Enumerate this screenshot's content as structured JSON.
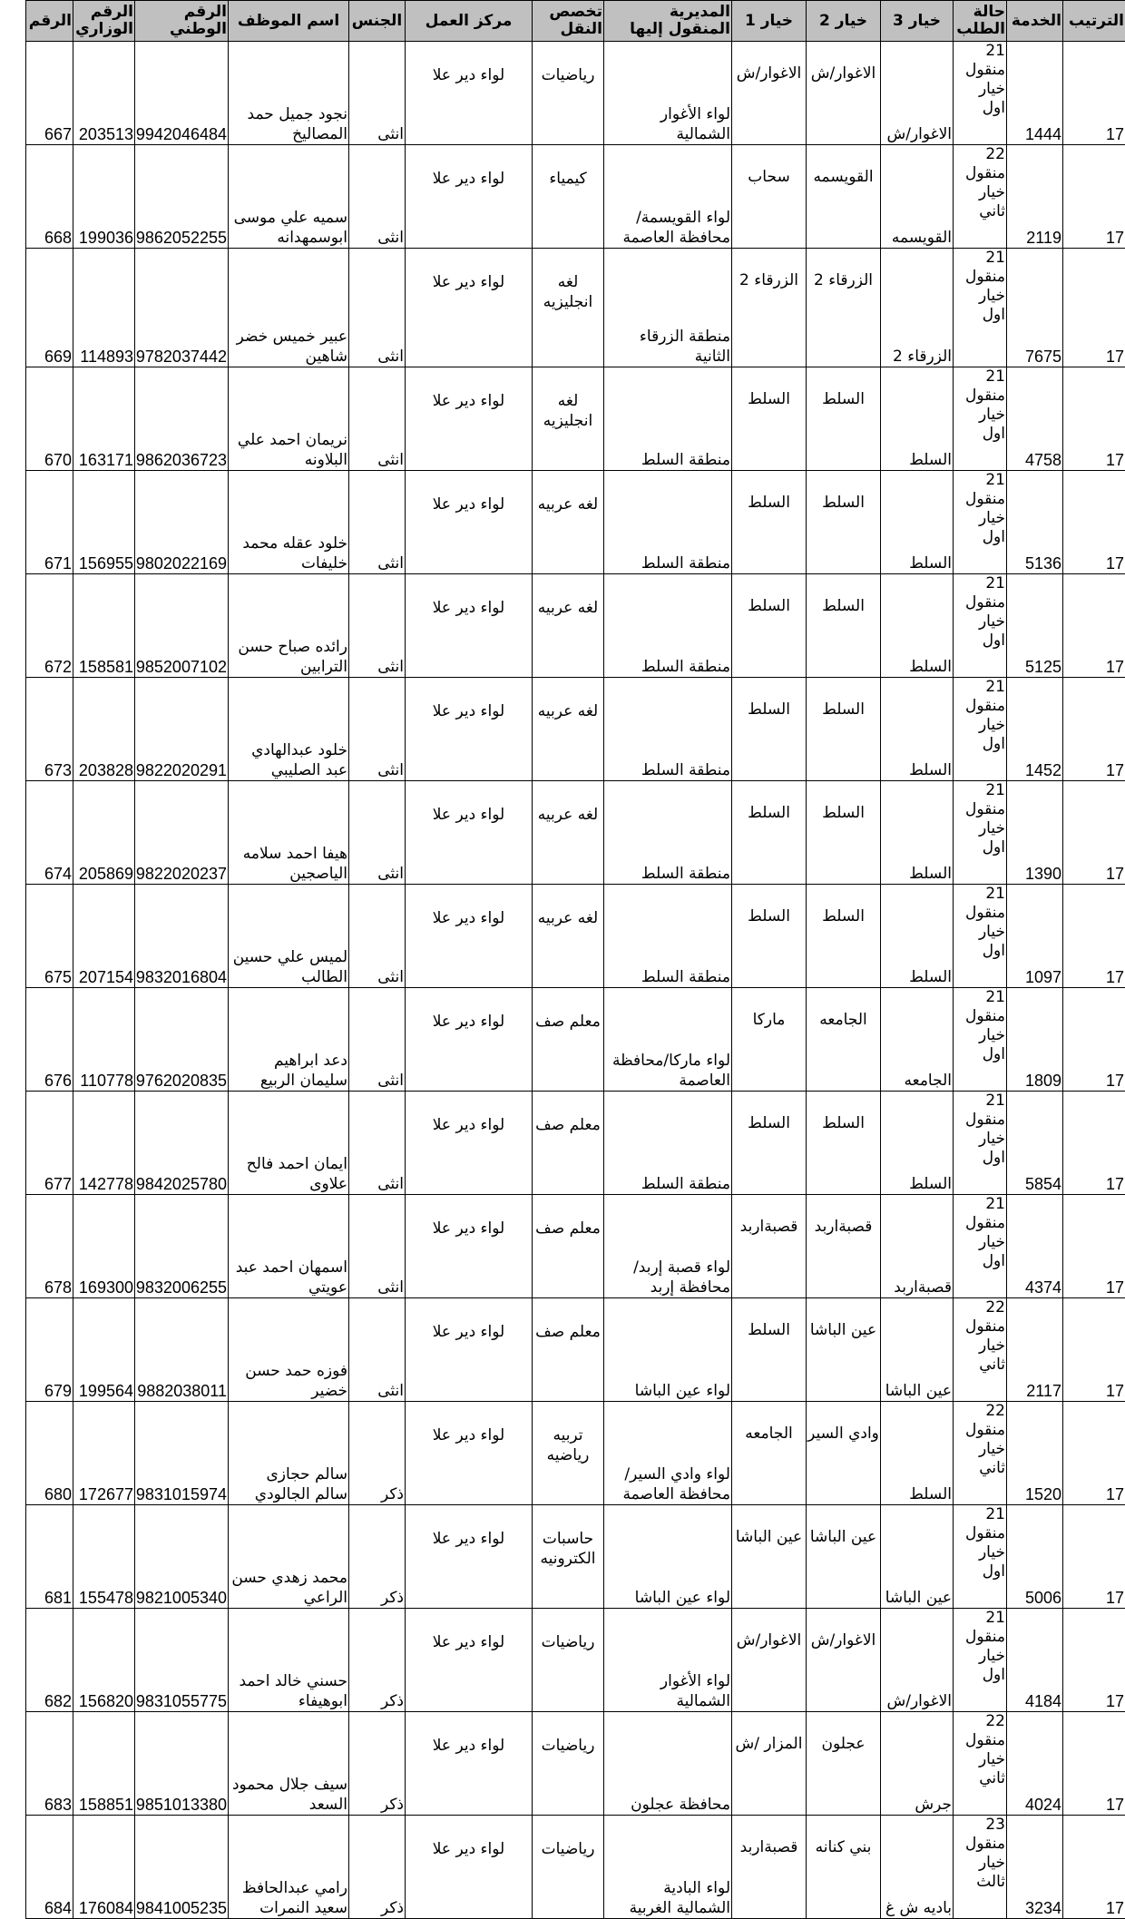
{
  "headers": [
    "الترتيب",
    "الخدمة",
    "حالة الطلب",
    "خيار 3",
    "خيار 2",
    "خيار 1",
    "المديرية المنقول إليها",
    "تخصص النقل",
    "مركز العمل",
    "الجنس",
    "اسم الموظف",
    "الرقم الوطني",
    "الرقم الوزاري",
    "الرقم"
  ],
  "rows": [
    [
      "17",
      "1444",
      "21 منقول خيار اول",
      "الاغوار/ش",
      "الاغوار/ش",
      "الاغوار/ش",
      "لواء الأغوار الشمالية",
      "رياضيات",
      "لواء دير علا",
      "انثى",
      "نجود جميل حمد المصاليخ",
      "9942046484",
      "203513",
      "667"
    ],
    [
      "17",
      "2119",
      "22 منقول خيار ثاني",
      "القويسمه",
      "القويسمه",
      "سحاب",
      "لواء القويسمة/محافظة العاصمة",
      "كيمياء",
      "لواء دير علا",
      "انثى",
      "سميه علي موسى ابوسمهدانه",
      "9862052255",
      "199036",
      "668"
    ],
    [
      "17",
      "7675",
      "21 منقول خيار اول",
      "الزرقاء 2",
      "الزرقاء 2",
      "الزرقاء 2",
      "منطقة الزرقاء الثانية",
      "لغه انجليزيه",
      "لواء دير علا",
      "انثى",
      "عبير خميس خضر شاهين",
      "9782037442",
      "114893",
      "669"
    ],
    [
      "17",
      "4758",
      "21 منقول خيار اول",
      "السلط",
      "السلط",
      "السلط",
      "منطقة السلط",
      "لغه انجليزيه",
      "لواء دير علا",
      "انثى",
      "نريمان احمد علي البلاونه",
      "9862036723",
      "163171",
      "670"
    ],
    [
      "17",
      "5136",
      "21 منقول خيار اول",
      "السلط",
      "السلط",
      "السلط",
      "منطقة السلط",
      "لغه عربيه",
      "لواء دير علا",
      "انثى",
      "خلود عقله محمد خليفات",
      "9802022169",
      "156955",
      "671"
    ],
    [
      "17",
      "5125",
      "21 منقول خيار اول",
      "السلط",
      "السلط",
      "السلط",
      "منطقة السلط",
      "لغه عربيه",
      "لواء دير علا",
      "انثى",
      "رائده صباح حسن الترابين",
      "9852007102",
      "158581",
      "672"
    ],
    [
      "17",
      "1452",
      "21 منقول خيار اول",
      "السلط",
      "السلط",
      "السلط",
      "منطقة السلط",
      "لغه عربيه",
      "لواء دير علا",
      "انثى",
      "خلود عبدالهادي عبد الصليبي",
      "9822020291",
      "203828",
      "673"
    ],
    [
      "17",
      "1390",
      "21 منقول خيار اول",
      "السلط",
      "السلط",
      "السلط",
      "منطقة السلط",
      "لغه عربيه",
      "لواء دير علا",
      "انثى",
      "هيفا احمد سلامه الياصجين",
      "9822020237",
      "205869",
      "674"
    ],
    [
      "17",
      "1097",
      "21 منقول خيار اول",
      "السلط",
      "السلط",
      "السلط",
      "منطقة السلط",
      "لغه عربيه",
      "لواء دير علا",
      "انثى",
      "لميس علي حسين الطالب",
      "9832016804",
      "207154",
      "675"
    ],
    [
      "17",
      "1809",
      "21 منقول خيار اول",
      "الجامعه",
      "الجامعه",
      "ماركا",
      "لواء ماركا/محافظة العاصمة",
      "معلم صف",
      "لواء دير علا",
      "انثى",
      "دعد ابراهيم سليمان الربيع",
      "9762020835",
      "110778",
      "676"
    ],
    [
      "17",
      "5854",
      "21 منقول خيار اول",
      "السلط",
      "السلط",
      "السلط",
      "منطقة السلط",
      "معلم صف",
      "لواء دير علا",
      "انثى",
      "ايمان احمد فالح علاوى",
      "9842025780",
      "142778",
      "677"
    ],
    [
      "17",
      "4374",
      "21 منقول خيار اول",
      "قصبةاربد",
      "قصبةاربد",
      "قصبةاربد",
      "لواء قصبة إربد/محافظة إربد",
      "معلم صف",
      "لواء دير علا",
      "انثى",
      "اسمهان احمد عبد عويتي",
      "9832006255",
      "169300",
      "678"
    ],
    [
      "17",
      "2117",
      "22 منقول خيار ثاني",
      "عين الباشا",
      "عين الباشا",
      "السلط",
      "لواء عين الباشا",
      "معلم صف",
      "لواء دير علا",
      "انثى",
      "فوزه حمد حسن خضير",
      "9882038011",
      "199564",
      "679"
    ],
    [
      "17",
      "1520",
      "22 منقول خيار ثاني",
      "السلط",
      "وادي السير",
      "الجامعه",
      "لواء وادي السير/محافظة العاصمة",
      "تربيه رياضيه",
      "لواء دير علا",
      "ذكر",
      "سالم حجازى سالم الجالودي",
      "9831015974",
      "172677",
      "680"
    ],
    [
      "17",
      "5006",
      "21 منقول خيار اول",
      "عين الباشا",
      "عين الباشا",
      "عين الباشا",
      "لواء عين الباشا",
      "حاسبات الكترونيه",
      "لواء دير علا",
      "ذكر",
      "محمد زهدي حسن الراعي",
      "9821005340",
      "155478",
      "681"
    ],
    [
      "17",
      "4184",
      "21 منقول خيار اول",
      "الاغوار/ش",
      "الاغوار/ش",
      "الاغوار/ش",
      "لواء الأغوار الشمالية",
      "رياضيات",
      "لواء دير علا",
      "ذكر",
      "حسني خالد احمد ابوهيفاء",
      "9831055775",
      "156820",
      "682"
    ],
    [
      "17",
      "4024",
      "22 منقول خيار ثاني",
      "جرش",
      "عجلون",
      "المزار /ش",
      "محافظة عجلون",
      "رياضيات",
      "لواء دير علا",
      "ذكر",
      "سيف جلال محمود السعد",
      "9851013380",
      "158851",
      "683"
    ],
    [
      "17",
      "3234",
      "23 منقول خيار ثالث",
      "باديه ش غ",
      "بني كنانه",
      "قصبةاربد",
      "لواء البادية الشمالية الغربية",
      "رياضيات",
      "لواء دير علا",
      "ذكر",
      "رامي عبدالحافظ سعيد النمرات",
      "9841005235",
      "176084",
      "684"
    ]
  ]
}
